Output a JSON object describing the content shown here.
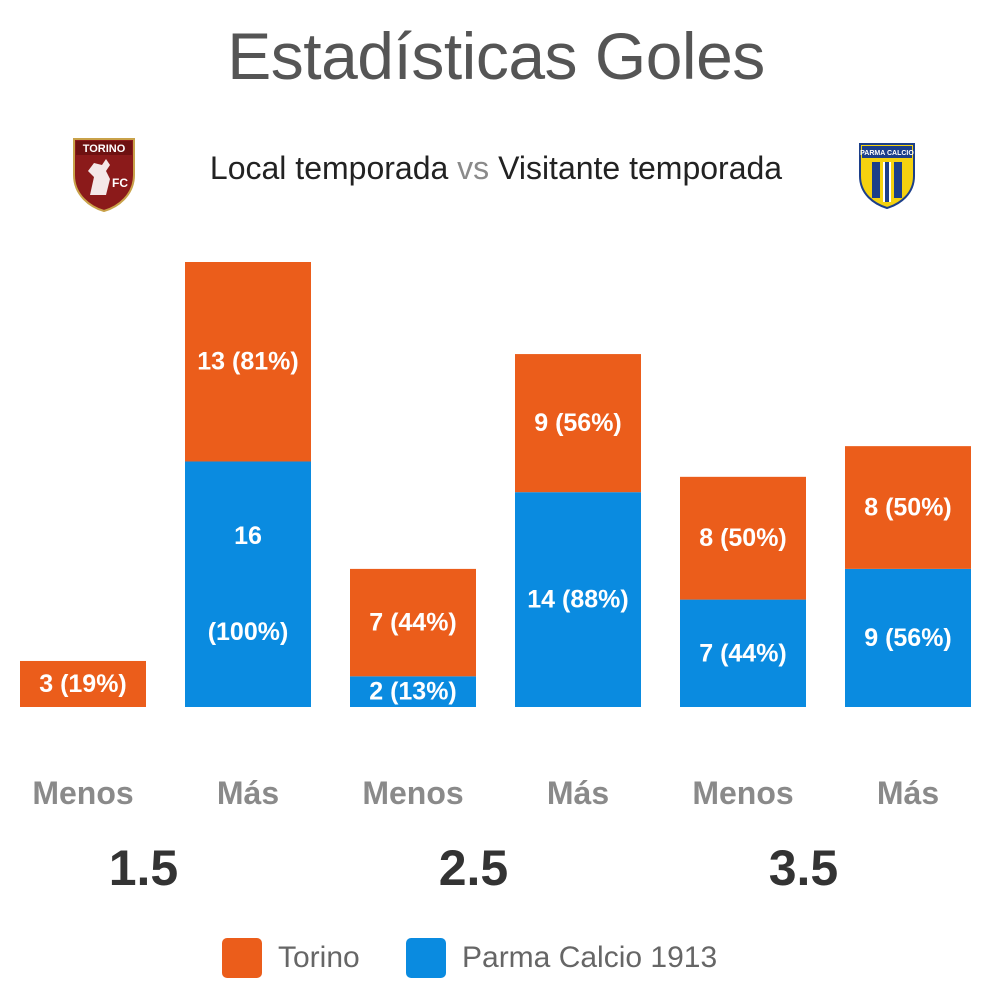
{
  "header": {
    "title": "Estadísticas Goles",
    "subtitle_home": "Local temporada",
    "subtitle_vs": "vs",
    "subtitle_away": "Visitante temporada"
  },
  "logos": {
    "home": {
      "icon": "torino-fc-crest-icon",
      "text": "TORINO",
      "subtext": "FC",
      "color": "#8b1a1a"
    },
    "away": {
      "icon": "parma-calcio-crest-icon",
      "text": "PARMA CALCIO",
      "color": "#1c3f8a",
      "accent": "#f5d20f"
    }
  },
  "colors": {
    "home": "#eb5d1b",
    "away": "#0a8be0"
  },
  "chart_data": {
    "type": "bar",
    "stacked": true,
    "categories": [
      "Menos",
      "Más",
      "Menos",
      "Más",
      "Menos",
      "Más"
    ],
    "groups": [
      "1.5",
      "2.5",
      "3.5"
    ],
    "series": [
      {
        "name": "Torino",
        "values": [
          3,
          13,
          7,
          9,
          8,
          8
        ],
        "labels": [
          "3 (19%)",
          "13 (81%)",
          "7 (44%)",
          "9 (56%)",
          "8 (50%)",
          "8 (50%)"
        ]
      },
      {
        "name": "Parma Calcio 1913",
        "values": [
          0,
          16,
          2,
          14,
          7,
          9
        ],
        "labels": [
          "",
          "16 (100%)",
          "2 (13%)",
          "14 (88%)",
          "7 (44%)",
          "9 (56%)"
        ]
      }
    ],
    "legend": "bottom-center",
    "grid": false
  }
}
